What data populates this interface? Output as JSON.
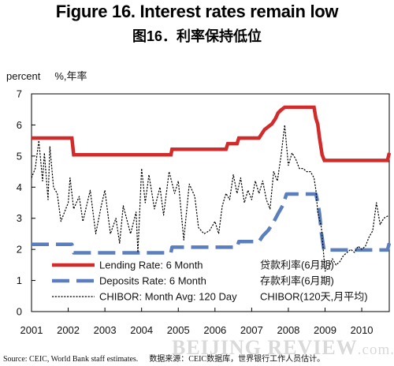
{
  "title": "Figure 16. Interest rates remain low",
  "subtitle": "图16．利率保持低位",
  "unit_label": "percent",
  "unit_label_cn": "%,年率",
  "source": "Source: CEIC, World Bank staff estimates.",
  "source_cn": "数据来源：CEIC数据库，世界银行工作人员估计。",
  "watermark": "BEIJING REVIEW",
  "watermark_suffix": ".com.cn",
  "colors": {
    "lending": "#d22b2b",
    "deposits": "#5b7fbe",
    "chibor": "#000000"
  },
  "chart_data": {
    "type": "line",
    "title": "Figure 16. Interest rates remain low",
    "ylabel": "percent",
    "ylim": [
      0,
      7
    ],
    "xlim": [
      2001,
      2010.75
    ],
    "x_ticks": [
      "2001",
      "2002",
      "2003",
      "2004",
      "2005",
      "2006",
      "2007",
      "2008",
      "2009",
      "2010"
    ],
    "y_ticks": [
      "0",
      "1",
      "2",
      "3",
      "4",
      "5",
      "6",
      "7"
    ],
    "grid": false,
    "legend_position": "bottom-left, inside plot",
    "series": [
      {
        "name": "Lending Rate: 6 Month",
        "name_cn": "贷款利率(6月期)",
        "style": "solid-thick",
        "color": "#d22b2b",
        "points": [
          [
            2001.0,
            5.58
          ],
          [
            2002.1,
            5.58
          ],
          [
            2002.15,
            5.04
          ],
          [
            2004.8,
            5.04
          ],
          [
            2004.83,
            5.22
          ],
          [
            2006.3,
            5.22
          ],
          [
            2006.35,
            5.4
          ],
          [
            2006.6,
            5.4
          ],
          [
            2006.65,
            5.58
          ],
          [
            2007.2,
            5.58
          ],
          [
            2007.25,
            5.67
          ],
          [
            2007.35,
            5.85
          ],
          [
            2007.55,
            6.03
          ],
          [
            2007.65,
            6.21
          ],
          [
            2007.72,
            6.39
          ],
          [
            2007.8,
            6.48
          ],
          [
            2007.9,
            6.57
          ],
          [
            2008.7,
            6.57
          ],
          [
            2008.75,
            6.21
          ],
          [
            2008.8,
            6.03
          ],
          [
            2008.85,
            5.58
          ],
          [
            2008.92,
            5.04
          ],
          [
            2008.98,
            4.86
          ],
          [
            2010.7,
            4.86
          ],
          [
            2010.75,
            5.1
          ]
        ]
      },
      {
        "name": "Deposits Rate: 6 Month",
        "name_cn": "存款利率(6月期)",
        "style": "dashed-thick",
        "color": "#5b7fbe",
        "points": [
          [
            2001.0,
            2.16
          ],
          [
            2002.1,
            2.16
          ],
          [
            2002.15,
            1.89
          ],
          [
            2004.8,
            1.89
          ],
          [
            2004.83,
            2.07
          ],
          [
            2006.6,
            2.07
          ],
          [
            2006.65,
            2.25
          ],
          [
            2007.2,
            2.25
          ],
          [
            2007.3,
            2.43
          ],
          [
            2007.45,
            2.61
          ],
          [
            2007.6,
            2.88
          ],
          [
            2007.72,
            3.15
          ],
          [
            2007.85,
            3.42
          ],
          [
            2007.95,
            3.78
          ],
          [
            2008.75,
            3.78
          ],
          [
            2008.8,
            3.51
          ],
          [
            2008.85,
            3.15
          ],
          [
            2008.9,
            2.52
          ],
          [
            2008.97,
            1.98
          ],
          [
            2010.7,
            1.98
          ],
          [
            2010.75,
            2.2
          ]
        ]
      },
      {
        "name": "CHIBOR: Month Avg: 120 Day",
        "name_cn": "CHIBOR(120天,月平均)",
        "style": "dotted-thin",
        "color": "#000000",
        "points": [
          [
            2001.0,
            4.3
          ],
          [
            2001.1,
            4.6
          ],
          [
            2001.2,
            5.5
          ],
          [
            2001.3,
            4.2
          ],
          [
            2001.35,
            5.1
          ],
          [
            2001.45,
            3.6
          ],
          [
            2001.5,
            5.3
          ],
          [
            2001.6,
            4.0
          ],
          [
            2001.7,
            3.8
          ],
          [
            2001.8,
            2.9
          ],
          [
            2001.9,
            3.2
          ],
          [
            2002.0,
            3.5
          ],
          [
            2002.05,
            4.3
          ],
          [
            2002.15,
            3.3
          ],
          [
            2002.3,
            3.7
          ],
          [
            2002.4,
            2.9
          ],
          [
            2002.6,
            3.9
          ],
          [
            2002.75,
            2.5
          ],
          [
            2002.9,
            3.4
          ],
          [
            2003.0,
            3.9
          ],
          [
            2003.15,
            2.5
          ],
          [
            2003.3,
            3.0
          ],
          [
            2003.4,
            2.2
          ],
          [
            2003.5,
            3.4
          ],
          [
            2003.7,
            2.5
          ],
          [
            2003.85,
            3.2
          ],
          [
            2003.9,
            1.9
          ],
          [
            2004.0,
            4.6
          ],
          [
            2004.1,
            3.5
          ],
          [
            2004.2,
            4.4
          ],
          [
            2004.35,
            3.3
          ],
          [
            2004.5,
            4.0
          ],
          [
            2004.6,
            3.1
          ],
          [
            2004.75,
            4.5
          ],
          [
            2004.9,
            3.8
          ],
          [
            2005.0,
            4.2
          ],
          [
            2005.15,
            2.3
          ],
          [
            2005.3,
            4.1
          ],
          [
            2005.45,
            3.7
          ],
          [
            2005.55,
            2.7
          ],
          [
            2005.7,
            2.5
          ],
          [
            2005.85,
            2.6
          ],
          [
            2006.0,
            2.9
          ],
          [
            2006.1,
            2.5
          ],
          [
            2006.2,
            3.4
          ],
          [
            2006.3,
            3.8
          ],
          [
            2006.4,
            3.6
          ],
          [
            2006.5,
            4.4
          ],
          [
            2006.6,
            3.8
          ],
          [
            2006.7,
            4.3
          ],
          [
            2006.8,
            3.5
          ],
          [
            2006.9,
            3.9
          ],
          [
            2007.0,
            3.6
          ],
          [
            2007.1,
            4.2
          ],
          [
            2007.2,
            3.8
          ],
          [
            2007.3,
            4.2
          ],
          [
            2007.4,
            3.6
          ],
          [
            2007.5,
            3.3
          ],
          [
            2007.6,
            4.5
          ],
          [
            2007.7,
            4.2
          ],
          [
            2007.8,
            5.0
          ],
          [
            2007.9,
            6.0
          ],
          [
            2008.0,
            4.7
          ],
          [
            2008.1,
            5.1
          ],
          [
            2008.2,
            4.9
          ],
          [
            2008.3,
            4.6
          ],
          [
            2008.4,
            4.6
          ],
          [
            2008.5,
            4.5
          ],
          [
            2008.6,
            4.5
          ],
          [
            2008.7,
            4.3
          ],
          [
            2008.75,
            3.9
          ],
          [
            2008.8,
            3.2
          ],
          [
            2008.9,
            2.7
          ],
          [
            2009.0,
            1.3
          ],
          [
            2009.1,
            1.4
          ],
          [
            2009.2,
            1.7
          ],
          [
            2009.3,
            1.5
          ],
          [
            2009.4,
            1.6
          ],
          [
            2009.5,
            1.8
          ],
          [
            2009.6,
            1.9
          ],
          [
            2009.7,
            2.0
          ],
          [
            2009.8,
            1.9
          ],
          [
            2009.9,
            2.1
          ],
          [
            2010.0,
            2.0
          ],
          [
            2010.1,
            2.1
          ],
          [
            2010.2,
            2.4
          ],
          [
            2010.3,
            2.6
          ],
          [
            2010.4,
            3.5
          ],
          [
            2010.5,
            2.8
          ],
          [
            2010.6,
            3.0
          ],
          [
            2010.75,
            3.1
          ]
        ]
      }
    ]
  }
}
